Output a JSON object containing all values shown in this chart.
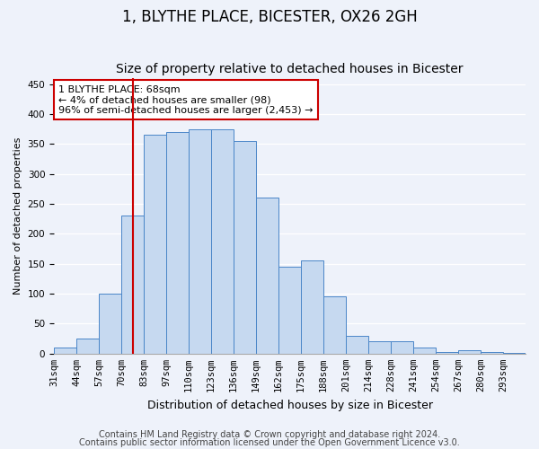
{
  "title1": "1, BLYTHE PLACE, BICESTER, OX26 2GH",
  "title2": "Size of property relative to detached houses in Bicester",
  "xlabel": "Distribution of detached houses by size in Bicester",
  "ylabel": "Number of detached properties",
  "categories": [
    "31sqm",
    "44sqm",
    "57sqm",
    "70sqm",
    "83sqm",
    "97sqm",
    "110sqm",
    "123sqm",
    "136sqm",
    "149sqm",
    "162sqm",
    "175sqm",
    "188sqm",
    "201sqm",
    "214sqm",
    "228sqm",
    "241sqm",
    "254sqm",
    "267sqm",
    "280sqm",
    "293sqm"
  ],
  "values": [
    10,
    25,
    100,
    230,
    365,
    370,
    375,
    375,
    355,
    260,
    145,
    155,
    95,
    30,
    20,
    20,
    10,
    3,
    5,
    2,
    1
  ],
  "bar_color": "#c6d9f0",
  "bar_edge_color": "#4a86c8",
  "vline_x": 3.5,
  "vline_color": "#cc0000",
  "annotation_text": "1 BLYTHE PLACE: 68sqm\n← 4% of detached houses are smaller (98)\n96% of semi-detached houses are larger (2,453) →",
  "annotation_box_color": "#ffffff",
  "annotation_box_edge_color": "#cc0000",
  "ylim": [
    0,
    460
  ],
  "yticks": [
    0,
    50,
    100,
    150,
    200,
    250,
    300,
    350,
    400,
    450
  ],
  "footer1": "Contains HM Land Registry data © Crown copyright and database right 2024.",
  "footer2": "Contains public sector information licensed under the Open Government Licence v3.0.",
  "background_color": "#eef2fa",
  "grid_color": "#ffffff",
  "title1_fontsize": 12,
  "title2_fontsize": 10,
  "xlabel_fontsize": 9,
  "ylabel_fontsize": 8,
  "tick_fontsize": 7.5,
  "annotation_fontsize": 8,
  "footer_fontsize": 7
}
